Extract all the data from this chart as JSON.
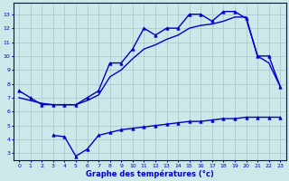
{
  "title": "Graphe des températures (°c)",
  "background_color": "#cce8e8",
  "grid_color": "#aacccc",
  "line_color": "#0000cc",
  "xlim": [
    -0.5,
    23.5
  ],
  "ylim": [
    2.5,
    13.8
  ],
  "yticks": [
    3,
    4,
    5,
    6,
    7,
    8,
    9,
    10,
    11,
    12,
    13
  ],
  "xticks": [
    0,
    1,
    2,
    3,
    4,
    5,
    6,
    7,
    8,
    9,
    10,
    11,
    12,
    13,
    14,
    15,
    16,
    17,
    18,
    19,
    20,
    21,
    22,
    23
  ],
  "series": [
    {
      "x": [
        0,
        1,
        2,
        3,
        4,
        5,
        6,
        7,
        8,
        9,
        10,
        11,
        12,
        13,
        14,
        15,
        16,
        17,
        18,
        19,
        20,
        21,
        22,
        23
      ],
      "y": [
        7.5,
        7.0,
        6.5,
        6.5,
        6.5,
        6.5,
        7.0,
        7.5,
        9.5,
        9.5,
        10.5,
        12.0,
        11.5,
        12.0,
        12.0,
        13.0,
        13.0,
        12.5,
        13.2,
        13.2,
        12.7,
        10.0,
        10.0,
        7.8
      ],
      "marker": "^",
      "markersize": 2.5,
      "linewidth": 1.0
    },
    {
      "x": [
        0,
        1,
        2,
        3,
        4,
        5,
        6,
        7,
        8,
        9,
        10,
        11,
        12,
        13,
        14,
        15,
        16,
        17,
        18,
        19,
        20,
        21,
        22,
        23
      ],
      "y": [
        7.0,
        6.8,
        6.6,
        6.5,
        6.5,
        6.5,
        6.8,
        7.2,
        8.5,
        9.0,
        9.8,
        10.5,
        10.8,
        11.2,
        11.5,
        12.0,
        12.2,
        12.3,
        12.5,
        12.8,
        12.8,
        10.0,
        9.5,
        7.8
      ],
      "marker": null,
      "markersize": 0,
      "linewidth": 1.0
    },
    {
      "x": [
        0,
        1,
        2,
        3,
        4,
        5,
        6,
        7,
        8,
        9,
        10,
        11,
        12,
        13,
        14,
        15,
        16,
        17,
        18,
        19,
        20,
        21,
        22,
        23
      ],
      "y": [
        null,
        null,
        null,
        4.3,
        4.2,
        2.8,
        3.3,
        4.3,
        4.5,
        4.7,
        4.8,
        4.9,
        5.0,
        5.1,
        5.2,
        5.3,
        5.3,
        5.4,
        5.5,
        5.5,
        5.6,
        5.6,
        5.6,
        5.6
      ],
      "marker": "^",
      "markersize": 2.5,
      "linewidth": 1.0
    }
  ]
}
